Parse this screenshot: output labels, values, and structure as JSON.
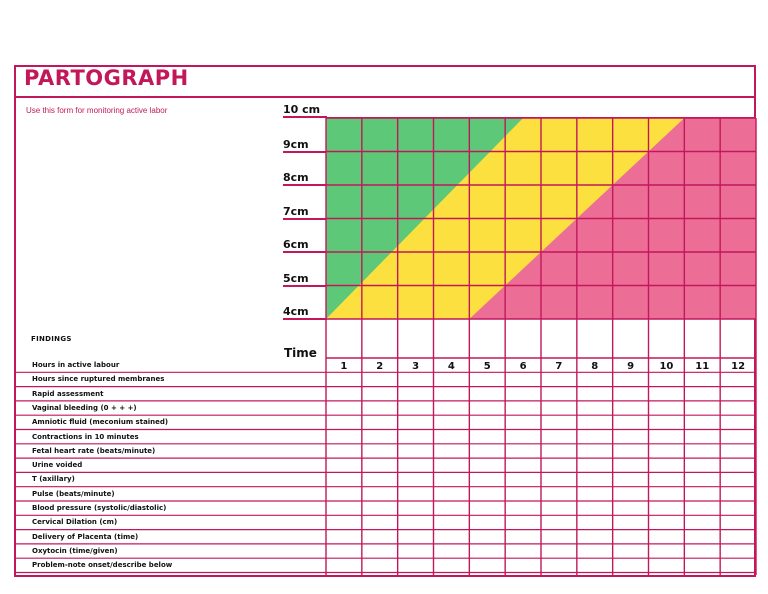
{
  "header": {
    "title": "PARTOGRAPH",
    "subtitle": "Use this form for monitoring active labor"
  },
  "dilation_labels": [
    "10 cm",
    "9cm",
    "8cm",
    "7cm",
    "6cm",
    "5cm",
    "4cm"
  ],
  "time_label": "Time",
  "findings_label": "FINDINGS",
  "hours": [
    "1",
    "2",
    "3",
    "4",
    "5",
    "6",
    "7",
    "8",
    "9",
    "10",
    "11",
    "12"
  ],
  "rows": [
    "Hours in active labour",
    "Hours since ruptured membranes",
    "Rapid assessment",
    "Vaginal bleeding (0 + + +)",
    "Amniotic fluid (meconium stained)",
    "Contractions in 10 minutes",
    "Fetal heart rate (beats/minute)",
    "Urine voided",
    "T (axillary)",
    "Pulse (beats/minute)",
    "Blood pressure (systolic/diastolic)",
    "Cervical Dilation (cm)",
    "Delivery of Placenta (time)",
    "Oxytocin (time/given)",
    "Problem-note onset/describe below"
  ],
  "colors": {
    "border": "#c2185b",
    "zone_green": "#5cc878",
    "zone_yellow": "#fce040",
    "zone_pink": "#ec6d96"
  }
}
